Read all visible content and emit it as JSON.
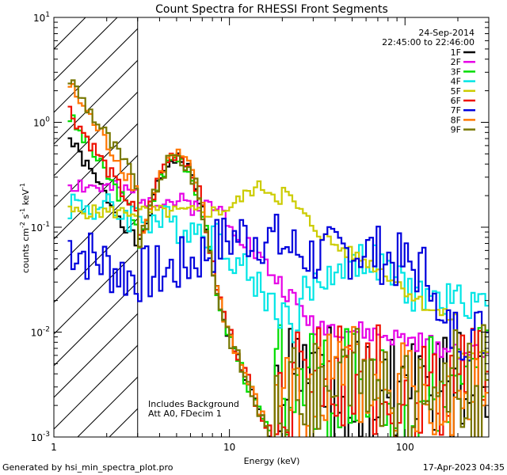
{
  "chart_data": {
    "type": "line",
    "title": "Count Spectra for RHESSI Front Segments",
    "xlabel": "Energy (keV)",
    "ylabel_parts": [
      "counts cm",
      "-2",
      " s",
      "-1",
      " keV",
      "-1"
    ],
    "x_scale": "log",
    "y_scale": "log",
    "xlim": [
      1,
      300
    ],
    "ylim": [
      0.001,
      10
    ],
    "x_ticks": [
      {
        "value": 1,
        "label": "1"
      },
      {
        "value": 10,
        "label": "10"
      },
      {
        "value": 100,
        "label": "100"
      }
    ],
    "y_ticks": [
      {
        "value": 10,
        "base": "10",
        "exp": "1"
      },
      {
        "value": 1,
        "base": "10",
        "exp": "0"
      },
      {
        "value": 0.1,
        "base": "10",
        "exp": "-1"
      },
      {
        "value": 0.01,
        "base": "10",
        "exp": "-2"
      },
      {
        "value": 0.001,
        "base": "10",
        "exp": "-3"
      }
    ],
    "hatched_region_kev": [
      1,
      3
    ],
    "date": "24-Sep-2014",
    "time_range": "22:45:00 to 22:46:00",
    "annotations": [
      "Includes Background",
      "Att A0, FDecim 1"
    ],
    "series": [
      {
        "name": "1F",
        "color": "#000000",
        "kind": "low",
        "lowFactor": 0.8,
        "hiFactor": 1.0,
        "noise": 0.3,
        "seed": 1
      },
      {
        "name": "2F",
        "color": "#e600e6",
        "kind": "pink",
        "seed": 2
      },
      {
        "name": "3F",
        "color": "#00dd00",
        "kind": "low",
        "lowFactor": 1.3,
        "hiFactor": 1.0,
        "noise": 0.35,
        "seed": 3
      },
      {
        "name": "4F",
        "color": "#00e5e5",
        "kind": "cyan",
        "seed": 4
      },
      {
        "name": "5F",
        "color": "#cccc00",
        "kind": "yellow",
        "seed": 5
      },
      {
        "name": "6F",
        "color": "#ee1100",
        "kind": "low",
        "lowFactor": 1.5,
        "hiFactor": 1.1,
        "noise": 0.35,
        "seed": 6
      },
      {
        "name": "7F",
        "color": "#0000dd",
        "kind": "blue",
        "seed": 7
      },
      {
        "name": "8F",
        "color": "#ff7700",
        "kind": "low",
        "lowFactor": 2.6,
        "hiFactor": 1.05,
        "noise": 0.35,
        "seed": 8
      },
      {
        "name": "9F",
        "color": "#777700",
        "kind": "low",
        "lowFactor": 3.0,
        "hiFactor": 1.0,
        "noise": 0.4,
        "seed": 9
      }
    ]
  },
  "footer": {
    "generated_by": "Generated by hsi_min_spectra_plot.pro",
    "timestamp": "17-Apr-2023 04:35"
  }
}
